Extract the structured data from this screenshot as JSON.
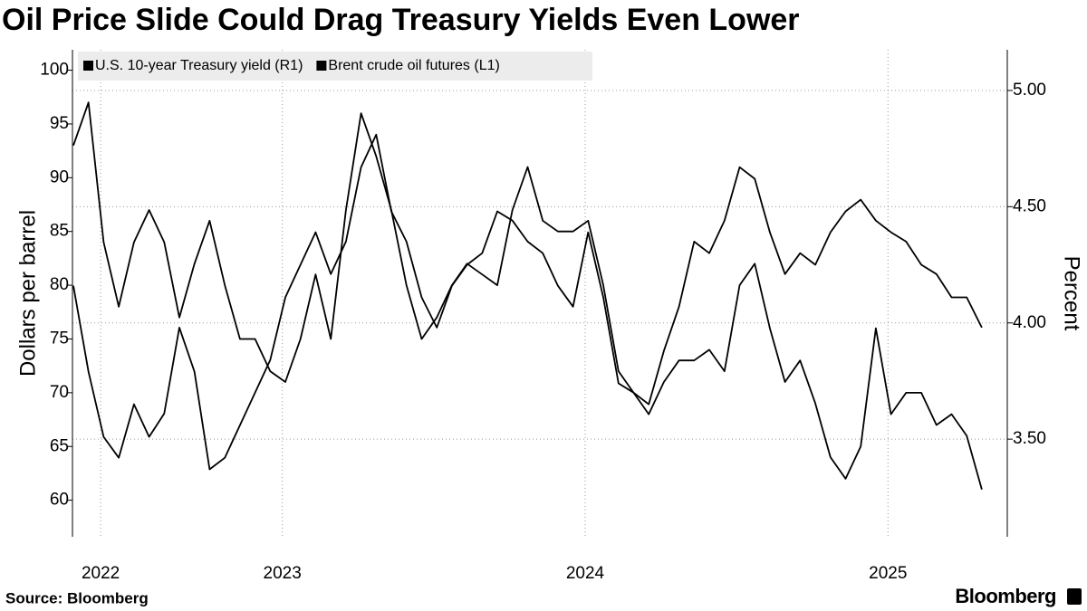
{
  "chart_data": {
    "type": "line",
    "title": "Oil Price Slide Could Drag Treasury Yields Even Lower",
    "ylabel": "Dollars per barrel",
    "y2label": "Percent",
    "source": "Source: Bloomberg",
    "logo_text": "Bloomberg",
    "x": [
      2022.31,
      2022.36,
      2022.41,
      2022.46,
      2022.51,
      2022.56,
      2022.61,
      2022.66,
      2022.71,
      2022.76,
      2022.81,
      2022.86,
      2022.91,
      2022.96,
      2023.01,
      2023.06,
      2023.11,
      2023.16,
      2023.21,
      2023.26,
      2023.31,
      2023.36,
      2023.41,
      2023.46,
      2023.51,
      2023.56,
      2023.61,
      2023.66,
      2023.71,
      2023.76,
      2023.81,
      2023.86,
      2023.91,
      2023.96,
      2024.01,
      2024.06,
      2024.11,
      2024.16,
      2024.21,
      2024.26,
      2024.31,
      2024.36,
      2024.41,
      2024.46,
      2024.51,
      2024.56,
      2024.61,
      2024.66,
      2024.71,
      2024.76,
      2024.81,
      2024.86,
      2024.91,
      2024.96,
      2025.01,
      2025.06,
      2025.11,
      2025.16,
      2025.21,
      2025.26,
      2025.31
    ],
    "series": [
      {
        "name": "U.S. 10-year Treasury yield (R1)",
        "color": "#000000",
        "axis": "y2",
        "values": [
          4.16,
          3.79,
          3.51,
          3.42,
          3.65,
          3.51,
          3.61,
          3.98,
          3.79,
          3.37,
          3.42,
          3.56,
          3.7,
          3.84,
          4.11,
          4.25,
          4.39,
          4.21,
          4.35,
          4.67,
          4.81,
          4.48,
          4.35,
          4.11,
          3.98,
          4.16,
          4.25,
          4.3,
          4.48,
          4.44,
          4.35,
          4.3,
          4.16,
          4.07,
          4.39,
          4.11,
          3.74,
          3.7,
          3.65,
          3.88,
          4.07,
          4.35,
          4.3,
          4.44,
          4.67,
          4.62,
          4.39,
          4.21,
          4.3,
          4.25,
          4.39,
          4.48,
          4.53,
          4.44,
          4.39,
          4.35,
          4.25,
          4.21,
          4.11,
          4.11,
          3.98
        ]
      },
      {
        "name": "Brent crude oil futures (L1)",
        "color": "#000000",
        "axis": "y",
        "values": [
          93,
          97,
          84,
          78,
          84,
          87,
          84,
          77,
          82,
          86,
          80,
          75,
          75,
          72,
          71,
          75,
          81,
          75,
          87,
          96,
          92,
          87,
          80,
          75,
          77,
          80,
          82,
          81,
          80,
          87,
          91,
          86,
          85,
          85,
          86,
          80,
          72,
          70,
          68,
          71,
          73,
          73,
          74,
          72,
          80,
          82,
          76,
          71,
          73,
          69,
          64,
          62,
          65,
          76,
          68,
          70,
          70,
          67,
          68,
          66,
          61
        ]
      }
    ],
    "xlim": [
      2022.307,
      2025.394
    ],
    "xticks": [
      {
        "value": 2022.4,
        "label": "2022"
      },
      2023,
      2024,
      2025
    ],
    "ylim": [
      56.6,
      101.9
    ],
    "yticks": [
      60,
      65,
      70,
      75,
      80,
      85,
      90,
      95,
      100
    ],
    "y2lim": [
      3.08,
      5.175
    ],
    "y2ticks": [
      {
        "value": 3.5,
        "label": "3.50"
      },
      {
        "value": 4,
        "label": "4.00"
      },
      {
        "value": 4.5,
        "label": "4.50"
      },
      {
        "value": 5,
        "label": "5.00"
      }
    ],
    "grid": true
  }
}
